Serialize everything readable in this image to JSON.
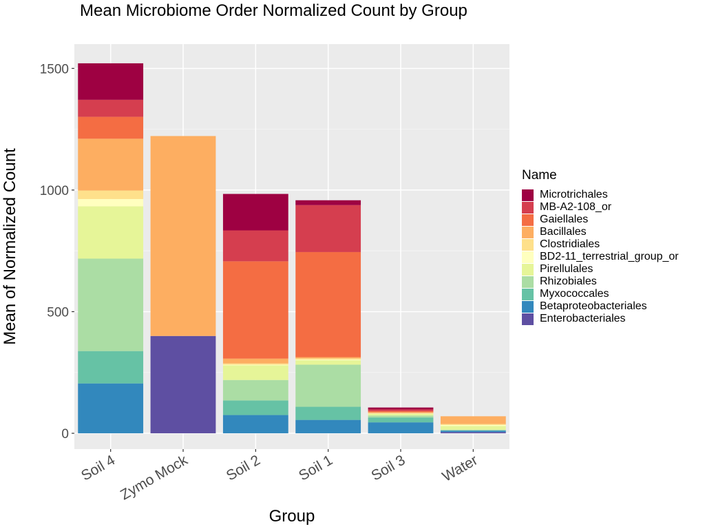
{
  "chart_data": {
    "type": "bar",
    "stacked": true,
    "title": "Mean Microbiome Order Normalized Count by Group",
    "xlabel": "Group",
    "ylabel": "Mean of Normalized Count",
    "ylim": [
      -65,
      1600
    ],
    "yticks": [
      0,
      500,
      1000,
      1500
    ],
    "grid": true,
    "legend_title": "Name",
    "legend_position": "right",
    "categories": [
      "Soil 4",
      "Zymo Mock",
      "Soil 2",
      "Soil 1",
      "Soil 3",
      "Water"
    ],
    "series": [
      {
        "name": "Microtrichales",
        "color": "#9E0142",
        "values": [
          150,
          0,
          150,
          20,
          8,
          0
        ]
      },
      {
        "name": "MB-A2-108_or",
        "color": "#D53E4F",
        "values": [
          70,
          0,
          127,
          193,
          7,
          0
        ]
      },
      {
        "name": "Gaiellales",
        "color": "#F46D43",
        "values": [
          90,
          0,
          400,
          432,
          4,
          0
        ]
      },
      {
        "name": "Bacillales",
        "color": "#FDAE61",
        "values": [
          213,
          822,
          20,
          5,
          4,
          32
        ]
      },
      {
        "name": "Clostridiales",
        "color": "#FEE08B",
        "values": [
          35,
          0,
          5,
          5,
          2,
          4
        ]
      },
      {
        "name": "BD2-11_terrestrial_group_or",
        "color": "#FFFFBF",
        "values": [
          30,
          0,
          3,
          3,
          1,
          4
        ]
      },
      {
        "name": "Pirellulales",
        "color": "#E6F598",
        "values": [
          215,
          0,
          60,
          18,
          7,
          15
        ]
      },
      {
        "name": "Rhizobiales",
        "color": "#ABDDA4",
        "values": [
          380,
          0,
          84,
          173,
          8,
          3
        ]
      },
      {
        "name": "Myxococcales",
        "color": "#66C2A5",
        "values": [
          133,
          0,
          60,
          54,
          20,
          1
        ]
      },
      {
        "name": "Betaproteobacteriales",
        "color": "#3288BD",
        "values": [
          205,
          0,
          75,
          55,
          45,
          6
        ]
      },
      {
        "name": "Enterobacteriales",
        "color": "#5E4FA2",
        "values": [
          0,
          400,
          0,
          0,
          0,
          5
        ]
      }
    ]
  }
}
